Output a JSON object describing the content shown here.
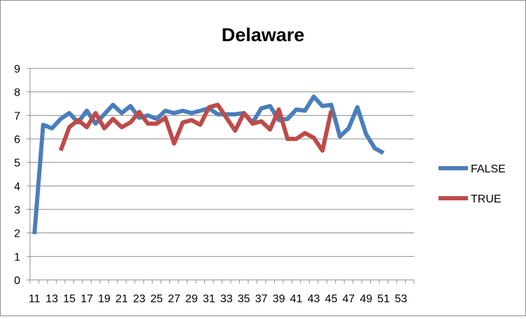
{
  "chart_data": {
    "type": "line",
    "title": "Delaware",
    "xlabel": "",
    "ylabel": "",
    "ylim": [
      0,
      9
    ],
    "yticks": [
      0,
      1,
      2,
      3,
      4,
      5,
      6,
      7,
      8,
      9
    ],
    "xticks": [
      11,
      13,
      15,
      17,
      19,
      21,
      23,
      25,
      27,
      29,
      31,
      33,
      35,
      37,
      39,
      41,
      43,
      45,
      47,
      49,
      51,
      53
    ],
    "grid": true,
    "legend_position": "right",
    "x": [
      11,
      12,
      13,
      14,
      15,
      16,
      17,
      18,
      19,
      20,
      21,
      22,
      23,
      24,
      25,
      26,
      27,
      28,
      29,
      30,
      31,
      32,
      33,
      34,
      35,
      36,
      37,
      38,
      39,
      40,
      41,
      42,
      43,
      44,
      45,
      46,
      47,
      48,
      49,
      50,
      51,
      52,
      53,
      54
    ],
    "series": [
      {
        "name": "FALSE",
        "color": "#4a7ebb",
        "values": [
          1.95,
          6.6,
          6.45,
          6.85,
          7.1,
          6.7,
          7.2,
          6.65,
          7.05,
          7.45,
          7.1,
          7.4,
          6.9,
          7.0,
          6.85,
          7.2,
          7.1,
          7.2,
          7.1,
          7.2,
          7.3,
          7.05,
          7.05,
          7.05,
          7.1,
          6.7,
          7.3,
          7.4,
          6.8,
          6.85,
          7.25,
          7.2,
          7.8,
          7.4,
          7.45,
          6.1,
          6.45,
          7.35,
          6.2,
          5.6,
          5.4,
          null,
          null,
          null
        ]
      },
      {
        "name": "TRUE",
        "color": "#be4b48",
        "values": [
          null,
          null,
          null,
          5.5,
          6.5,
          6.8,
          6.5,
          7.1,
          6.45,
          6.85,
          6.5,
          6.7,
          7.15,
          6.65,
          6.65,
          6.9,
          5.8,
          6.7,
          6.8,
          6.6,
          7.35,
          7.45,
          6.9,
          6.35,
          7.1,
          6.65,
          6.75,
          6.4,
          7.25,
          6.0,
          6.0,
          6.25,
          6.05,
          5.5,
          7.2,
          null,
          null,
          null,
          null,
          null,
          null,
          null,
          null,
          null
        ]
      }
    ]
  }
}
